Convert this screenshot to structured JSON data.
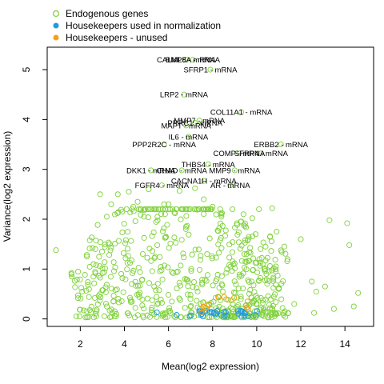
{
  "chart_data": {
    "type": "scatter",
    "xlabel": "Mean(log2 expression)",
    "ylabel": "Variance(log2 expression)",
    "xlim": [
      0.5,
      15.3
    ],
    "ylim": [
      -0.15,
      5.45
    ],
    "x_ticks": [
      "2",
      "4",
      "6",
      "8",
      "10",
      "12",
      "14"
    ],
    "y_ticks": [
      "0",
      "1",
      "2",
      "3",
      "4",
      "5"
    ],
    "legend": {
      "position": "top-left",
      "entries": [
        {
          "label": "Endogenous genes",
          "color": "#7fd13b",
          "style": "open-circle"
        },
        {
          "label": "Housekeepers used in normalization",
          "color": "#1e9be0",
          "style": "filled-circle"
        },
        {
          "label": "Housekeepers - unused",
          "color": "#f5a014",
          "style": "filled-circle"
        }
      ]
    },
    "labeled_genes": [
      {
        "label": "CALML5 - mRNA",
        "x": 6.8,
        "y": 5.2
      },
      {
        "label": "BMP8A - mRNA",
        "x": 7.1,
        "y": 5.2
      },
      {
        "label": "SFRP1 - mRNA",
        "x": 7.9,
        "y": 5.0
      },
      {
        "label": "LRP2 - mRNA",
        "x": 6.7,
        "y": 4.5
      },
      {
        "label": "COL11A1 - mRNA",
        "x": 9.3,
        "y": 4.15
      },
      {
        "label": "MMP7 - mRNA",
        "x": 7.4,
        "y": 3.98
      },
      {
        "label": "PRRC1 - mRNA",
        "x": 7.2,
        "y": 3.93
      },
      {
        "label": "MAPT - mRNA",
        "x": 6.8,
        "y": 3.88
      },
      {
        "label": "IL6 - mRNA",
        "x": 6.9,
        "y": 3.65
      },
      {
        "label": "PPP2R2C - mRNA",
        "x": 5.8,
        "y": 3.5
      },
      {
        "label": "ERBB2 - mRNA",
        "x": 11.1,
        "y": 3.5
      },
      {
        "label": "COMP - mRNA",
        "x": 9.2,
        "y": 3.32
      },
      {
        "label": "SFRP4 - mRNA",
        "x": 10.2,
        "y": 3.32
      },
      {
        "label": "THBS4 - mRNA",
        "x": 7.8,
        "y": 3.1
      },
      {
        "label": "DKK1 - mRNA",
        "x": 5.2,
        "y": 2.98
      },
      {
        "label": "CHAD - mRNA",
        "x": 6.6,
        "y": 2.98
      },
      {
        "label": "MMP9 - mRNA",
        "x": 9.0,
        "y": 2.98
      },
      {
        "label": "CACNA1H - mRNA",
        "x": 7.6,
        "y": 2.77
      },
      {
        "label": "FGFR4 - mRNA",
        "x": 5.7,
        "y": 2.68
      },
      {
        "label": "AR - mRNA",
        "x": 8.8,
        "y": 2.68
      }
    ],
    "extra_endogenous_points": [
      [
        0.9,
        1.38
      ],
      [
        1.6,
        0.92
      ],
      [
        1.9,
        0.95
      ],
      [
        2.3,
        1.25
      ],
      [
        2.6,
        1.1
      ],
      [
        2.9,
        2.5
      ],
      [
        3.2,
        2.05
      ],
      [
        3.4,
        2.3
      ],
      [
        3.7,
        2.5
      ],
      [
        3.9,
        2.15
      ],
      [
        4.2,
        2.55
      ],
      [
        4.4,
        2.25
      ],
      [
        4.6,
        2.35
      ],
      [
        4.9,
        2.18
      ],
      [
        5.1,
        2.6
      ],
      [
        5.5,
        2.05
      ],
      [
        5.8,
        2.3
      ],
      [
        6.0,
        2.3
      ],
      [
        6.3,
        2.12
      ],
      [
        6.5,
        2.57
      ],
      [
        7.2,
        2.62
      ],
      [
        7.6,
        2.4
      ],
      [
        8.0,
        2.25
      ],
      [
        8.4,
        2.05
      ],
      [
        8.9,
        2.2
      ],
      [
        9.4,
        2.1
      ],
      [
        9.8,
        2.02
      ],
      [
        10.1,
        2.2
      ],
      [
        9.1,
        1.92
      ],
      [
        8.3,
        1.82
      ],
      [
        10.7,
        2.22
      ],
      [
        10.9,
        1.75
      ],
      [
        12.0,
        1.6
      ],
      [
        13.3,
        1.98
      ],
      [
        14.1,
        1.92
      ],
      [
        14.2,
        1.48
      ],
      [
        10.4,
        1.45
      ],
      [
        11.4,
        1.2
      ],
      [
        12.5,
        0.75
      ],
      [
        13.1,
        0.65
      ],
      [
        12.7,
        0.55
      ],
      [
        14.6,
        0.52
      ],
      [
        14.4,
        0.25
      ],
      [
        12.6,
        0.12
      ],
      [
        11.7,
        0.3
      ],
      [
        11.0,
        0.6
      ],
      [
        13.5,
        0.2
      ]
    ]
  }
}
